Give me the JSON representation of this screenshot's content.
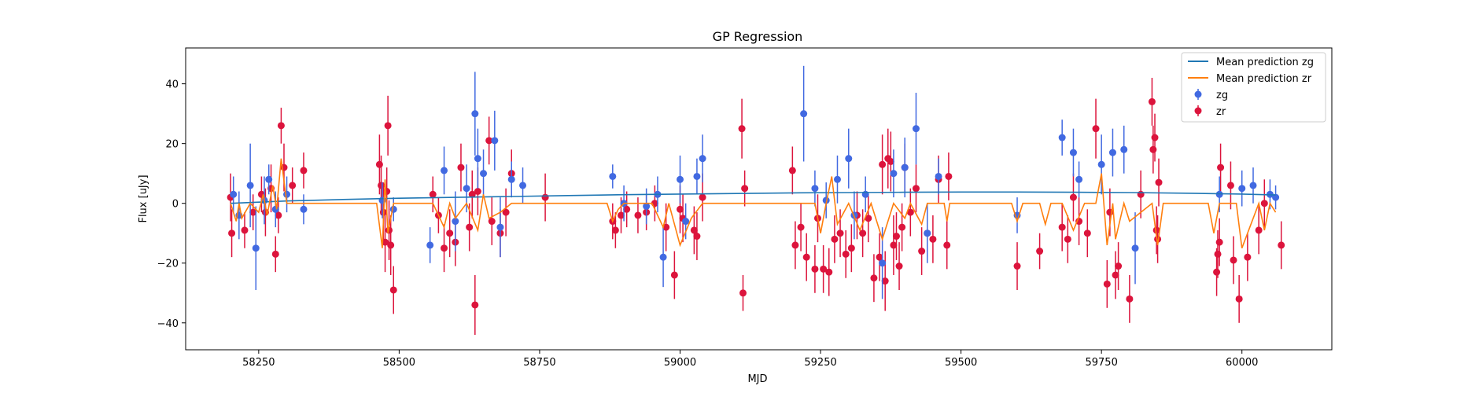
{
  "chart_data": {
    "type": "scatter",
    "title": "GP Regression",
    "xlabel": "MJD",
    "ylabel": "Flux [uJy]",
    "xlim": [
      58120,
      60160
    ],
    "ylim": [
      -49,
      52
    ],
    "xticks": [
      58250,
      58500,
      58750,
      59000,
      59250,
      59500,
      59750,
      60000
    ],
    "yticks": [
      -40,
      -20,
      0,
      20,
      40
    ],
    "grid": false,
    "legend_position": "top-right",
    "series": [
      {
        "name": "Mean prediction zg",
        "kind": "line",
        "color": "#1f77b4",
        "x": [
          58200,
          58300,
          58400,
          58500,
          58600,
          58700,
          58800,
          58900,
          59000,
          59100,
          59200,
          59300,
          59400,
          59500,
          59600,
          59700,
          59800,
          59900,
          60000,
          60060
        ],
        "y": [
          0.0,
          0.8,
          1.3,
          1.7,
          2.0,
          2.3,
          2.6,
          2.9,
          3.1,
          3.3,
          3.5,
          3.6,
          3.7,
          3.8,
          3.8,
          3.7,
          3.6,
          3.4,
          3.1,
          2.8
        ]
      },
      {
        "name": "Mean prediction zr",
        "kind": "line",
        "color": "#ff7f0e",
        "x": [
          58200,
          58210,
          58215,
          58220,
          58235,
          58250,
          58258,
          58265,
          58275,
          58282,
          58290,
          58300,
          58320,
          58460,
          58470,
          58475,
          58480,
          58490,
          58500,
          58560,
          58580,
          58590,
          58600,
          58620,
          58640,
          58650,
          58660,
          58680,
          58700,
          58870,
          58880,
          58890,
          58900,
          58950,
          58970,
          58980,
          59000,
          59020,
          59040,
          59050,
          59200,
          59240,
          59250,
          59260,
          59270,
          59280,
          59300,
          59320,
          59340,
          59360,
          59380,
          59400,
          59410,
          59430,
          59440,
          59470,
          59475,
          59480,
          59590,
          59600,
          59610,
          59640,
          59650,
          59660,
          59680,
          59700,
          59720,
          59740,
          59750,
          59760,
          59770,
          59775,
          59790,
          59800,
          59840,
          59850,
          59860,
          59940,
          59950,
          59960,
          59990,
          60000,
          60030,
          60040,
          60050,
          60060
        ],
        "y": [
          0,
          -6,
          0,
          -5,
          0,
          -3,
          3,
          -4,
          6,
          -2,
          15,
          0,
          0,
          0,
          -15,
          8,
          -10,
          0,
          0,
          0,
          -8,
          0,
          -5,
          0,
          -9,
          3,
          -5,
          -3,
          0,
          0,
          -6,
          -2,
          0,
          0,
          -8,
          0,
          -14,
          -5,
          0,
          0,
          0,
          0,
          -10,
          0,
          9,
          -7,
          0,
          -9,
          0,
          -12,
          0,
          -5,
          0,
          -7,
          0,
          0,
          -6,
          0,
          0,
          -6,
          0,
          0,
          -7,
          0,
          0,
          -9,
          0,
          0,
          10,
          -14,
          0,
          -12,
          0,
          -6,
          0,
          -14,
          0,
          0,
          -10,
          0,
          0,
          -15,
          0,
          -9,
          0,
          -3
        ]
      },
      {
        "name": "zg",
        "kind": "errorbar",
        "color": "#4169e1",
        "x": [
          58205,
          58215,
          58235,
          58245,
          58260,
          58268,
          58280,
          58300,
          58330,
          58470,
          58490,
          58555,
          58580,
          58600,
          58620,
          58635,
          58640,
          58650,
          58670,
          58680,
          58700,
          58720,
          58880,
          58900,
          58940,
          58960,
          58970,
          59000,
          59010,
          59030,
          59040,
          59220,
          59240,
          59260,
          59280,
          59300,
          59310,
          59330,
          59360,
          59380,
          59400,
          59420,
          59440,
          59460,
          59600,
          59680,
          59700,
          59710,
          59750,
          59770,
          59790,
          59810,
          59960,
          60000,
          60020,
          60050,
          60060
        ],
        "y": [
          3,
          -4,
          6,
          -15,
          1,
          8,
          -2,
          3,
          -2,
          1,
          -2,
          -14,
          11,
          -6,
          5,
          30,
          15,
          10,
          21,
          -8,
          8,
          6,
          9,
          0,
          -1,
          3,
          -18,
          8,
          -6,
          9,
          15,
          30,
          5,
          1,
          8,
          15,
          -4,
          3,
          -20,
          10,
          12,
          25,
          -10,
          9,
          -4,
          22,
          17,
          8,
          13,
          17,
          18,
          -15,
          3,
          5,
          6,
          3,
          2
        ],
        "yerr": [
          6,
          8,
          14,
          14,
          8,
          5,
          6,
          6,
          5,
          6,
          4,
          6,
          8,
          10,
          8,
          14,
          10,
          8,
          10,
          10,
          6,
          6,
          4,
          6,
          6,
          6,
          10,
          8,
          6,
          6,
          8,
          16,
          6,
          6,
          8,
          10,
          8,
          6,
          12,
          8,
          10,
          12,
          10,
          6,
          6,
          6,
          8,
          6,
          10,
          8,
          8,
          12,
          6,
          6,
          6,
          5,
          4
        ]
      },
      {
        "name": "zr",
        "kind": "errorbar",
        "color": "#dc143c",
        "x": [
          58200,
          58202,
          58225,
          58240,
          58255,
          58262,
          58272,
          58280,
          58285,
          58290,
          58295,
          58310,
          58330,
          58465,
          58468,
          58472,
          58475,
          58478,
          58480,
          58482,
          58485,
          58490,
          58560,
          58570,
          58580,
          58590,
          58600,
          58610,
          58625,
          58630,
          58635,
          58640,
          58660,
          58665,
          58680,
          58690,
          58700,
          58760,
          58880,
          58885,
          58895,
          58905,
          58925,
          58940,
          58955,
          58975,
          58990,
          59000,
          59005,
          59025,
          59030,
          59040,
          59110,
          59112,
          59115,
          59200,
          59205,
          59215,
          59225,
          59240,
          59245,
          59255,
          59265,
          59275,
          59285,
          59295,
          59305,
          59315,
          59325,
          59335,
          59345,
          59355,
          59360,
          59365,
          59370,
          59375,
          59380,
          59385,
          59390,
          59395,
          59400,
          59410,
          59420,
          59430,
          59440,
          59450,
          59460,
          59475,
          59478,
          59600,
          59640,
          59680,
          59690,
          59700,
          59710,
          59725,
          59740,
          59760,
          59765,
          59775,
          59780,
          59800,
          59820,
          59840,
          59842,
          59845,
          59848,
          59850,
          59852,
          59955,
          59957,
          59960,
          59962,
          59980,
          59985,
          59995,
          60010,
          60030,
          60040,
          60070
        ],
        "y": [
          2,
          -10,
          -9,
          -3,
          3,
          -3,
          5,
          -17,
          -4,
          26,
          12,
          6,
          11,
          13,
          6,
          -3,
          -13,
          4,
          26,
          -9,
          -14,
          -29,
          3,
          -4,
          -15,
          -10,
          -13,
          12,
          -8,
          3,
          -34,
          4,
          21,
          -6,
          -10,
          -3,
          10,
          2,
          -6,
          -9,
          -4,
          -2,
          -4,
          -3,
          0,
          -8,
          -24,
          -2,
          -5,
          -9,
          -11,
          2,
          25,
          -30,
          5,
          11,
          -14,
          -8,
          -18,
          -22,
          -5,
          -22,
          -23,
          -12,
          -10,
          -17,
          -15,
          -4,
          -10,
          -5,
          -25,
          -18,
          13,
          -26,
          15,
          14,
          -14,
          -11,
          -21,
          -8,
          12,
          -3,
          5,
          -16,
          -10,
          -12,
          8,
          -14,
          9,
          -21,
          -16,
          -8,
          -12,
          2,
          -6,
          -10,
          25,
          -27,
          -3,
          -24,
          -21,
          -32,
          3,
          34,
          18,
          22,
          -9,
          -12,
          7,
          -23,
          -17,
          -13,
          12,
          6,
          -19,
          -32,
          -18,
          -9,
          0,
          -14
        ],
        "yerr": [
          8,
          8,
          6,
          6,
          6,
          8,
          8,
          6,
          6,
          6,
          8,
          6,
          6,
          10,
          10,
          10,
          10,
          8,
          10,
          10,
          10,
          8,
          6,
          6,
          8,
          8,
          8,
          8,
          8,
          8,
          10,
          8,
          8,
          8,
          8,
          8,
          8,
          8,
          6,
          6,
          6,
          6,
          6,
          6,
          6,
          8,
          8,
          8,
          8,
          8,
          8,
          8,
          10,
          6,
          6,
          8,
          8,
          8,
          8,
          8,
          8,
          8,
          8,
          8,
          8,
          8,
          8,
          8,
          8,
          8,
          8,
          8,
          10,
          10,
          10,
          10,
          10,
          8,
          8,
          8,
          8,
          8,
          8,
          8,
          8,
          8,
          8,
          8,
          8,
          8,
          6,
          8,
          8,
          8,
          8,
          8,
          10,
          8,
          8,
          8,
          8,
          8,
          8,
          8,
          8,
          8,
          8,
          8,
          8,
          8,
          8,
          8,
          8,
          8,
          8,
          8,
          8,
          8,
          8,
          8
        ]
      }
    ]
  }
}
